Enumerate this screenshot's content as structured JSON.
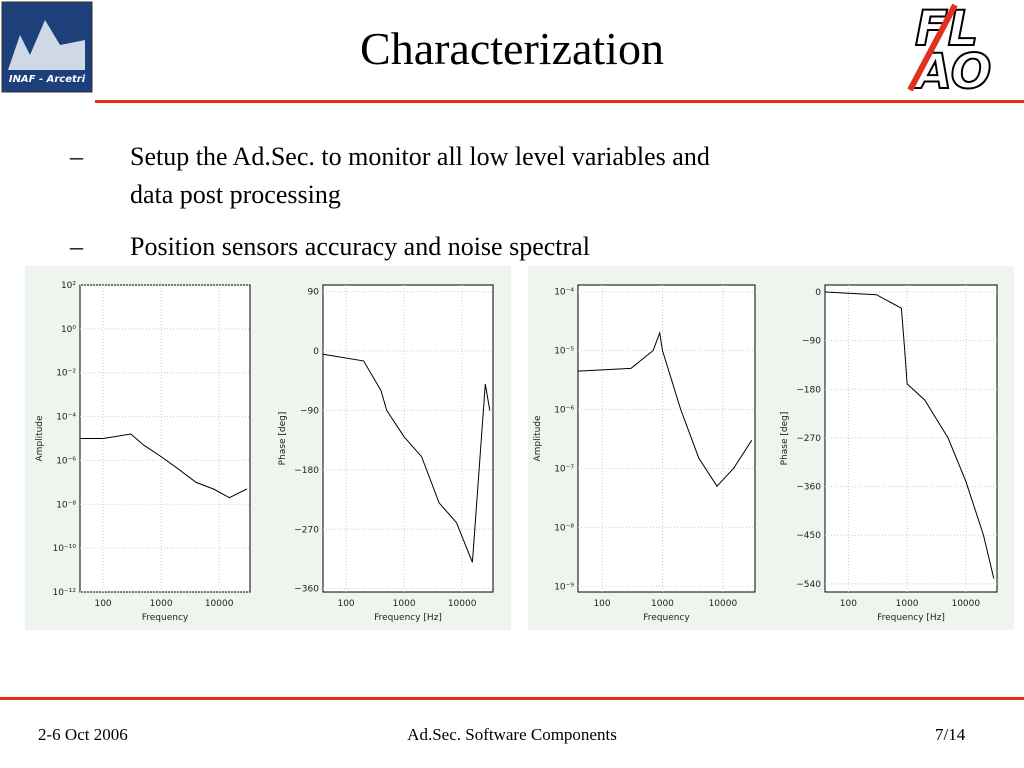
{
  "header": {
    "title": "Characterization",
    "logo_left": "INAF - Arcetri"
  },
  "bullets": [
    {
      "marker": "–",
      "text": "Setup the Ad.Sec. to monitor all low level variables and data post processing"
    },
    {
      "marker": "–",
      "text": "Position sensors accuracy and noise spectral"
    }
  ],
  "footer": {
    "date": "2-6 Oct 2006",
    "title": "Ad.Sec. Software Components",
    "page": "7/14"
  },
  "chart_data": [
    {
      "type": "line",
      "xlabel": "Frequency",
      "ylabel": "Amplitude",
      "xlog": true,
      "ylog": true,
      "xlim": [
        40,
        34000
      ],
      "ylim": [
        1e-12,
        100.0
      ],
      "xticks": [
        100,
        1000,
        10000
      ],
      "yticks": [
        {
          "value": 100.0,
          "label": "10²"
        },
        {
          "value": 1,
          "label": "10⁰"
        },
        {
          "value": 0.01,
          "label": "10⁻²"
        },
        {
          "value": 0.0001,
          "label": "10⁻⁴"
        },
        {
          "value": 1e-06,
          "label": "10⁻⁶"
        },
        {
          "value": 1e-08,
          "label": "10⁻⁸"
        },
        {
          "value": 1e-10,
          "label": "10⁻¹⁰"
        },
        {
          "value": 1e-12,
          "label": "10⁻¹²"
        }
      ],
      "x": [
        40,
        100,
        300,
        500,
        1000,
        2000,
        4000,
        8000,
        15000,
        30000
      ],
      "values": [
        1e-05,
        1e-05,
        1.6e-05,
        5e-06,
        1.5e-06,
        4e-07,
        1e-07,
        5e-08,
        2e-08,
        5e-08
      ],
      "color": "#000000"
    },
    {
      "type": "line",
      "xlabel": "Frequency [Hz]",
      "ylabel": "Phase [deg]",
      "xlog": true,
      "ylog": false,
      "xlim": [
        40,
        34000
      ],
      "ylim": [
        -365,
        100
      ],
      "xticks": [
        100,
        1000,
        10000
      ],
      "yticks": [
        90,
        0,
        {
          "value": -90,
          "label": "−90"
        },
        {
          "value": -180,
          "label": "−180"
        },
        {
          "value": -270,
          "label": "−270"
        },
        {
          "value": -360,
          "label": "−360"
        }
      ],
      "x": [
        40,
        200,
        400,
        500,
        1000,
        2000,
        4000,
        8000,
        15000,
        25000,
        30000
      ],
      "values": [
        -5,
        -15,
        -60,
        -90,
        -130,
        -160,
        -230,
        -260,
        -320,
        -50,
        -90
      ],
      "color": "#000000"
    },
    {
      "type": "line",
      "xlabel": "Frequency",
      "ylabel": "Amplitude",
      "xlog": true,
      "ylog": true,
      "xlim": [
        40,
        34000
      ],
      "ylim": [
        8e-10,
        0.00013
      ],
      "xticks": [
        100,
        1000,
        10000
      ],
      "yticks": [
        {
          "value": 0.0001,
          "label": "10⁻⁴"
        },
        {
          "value": 1e-05,
          "label": "10⁻⁵"
        },
        {
          "value": 1e-06,
          "label": "10⁻⁶"
        },
        {
          "value": 1e-07,
          "label": "10⁻⁷"
        },
        {
          "value": 1e-08,
          "label": "10⁻⁸"
        },
        {
          "value": 1e-09,
          "label": "10⁻⁹"
        }
      ],
      "x": [
        40,
        300,
        700,
        900,
        1000,
        2000,
        4000,
        8000,
        15000,
        30000
      ],
      "values": [
        4.5e-06,
        5e-06,
        1e-05,
        2e-05,
        1e-05,
        1e-06,
        1.5e-07,
        5e-08,
        1e-07,
        3e-07
      ],
      "color": "#000000"
    },
    {
      "type": "line",
      "xlabel": "Frequency [Hz]",
      "ylabel": "Phase [deg]",
      "xlog": true,
      "ylog": false,
      "xlim": [
        40,
        34000
      ],
      "ylim": [
        -555,
        13
      ],
      "xticks": [
        100,
        1000,
        10000
      ],
      "yticks": [
        0,
        {
          "value": -90,
          "label": "−90"
        },
        {
          "value": -180,
          "label": "−180"
        },
        {
          "value": -270,
          "label": "−270"
        },
        {
          "value": -360,
          "label": "−360"
        },
        {
          "value": -450,
          "label": "−450"
        },
        {
          "value": -540,
          "label": "−540"
        }
      ],
      "x": [
        40,
        300,
        800,
        900,
        1000,
        2000,
        5000,
        10000,
        20000,
        30000
      ],
      "values": [
        0,
        -5,
        -30,
        -100,
        -170,
        -200,
        -270,
        -350,
        -450,
        -530
      ],
      "color": "#000000"
    }
  ]
}
